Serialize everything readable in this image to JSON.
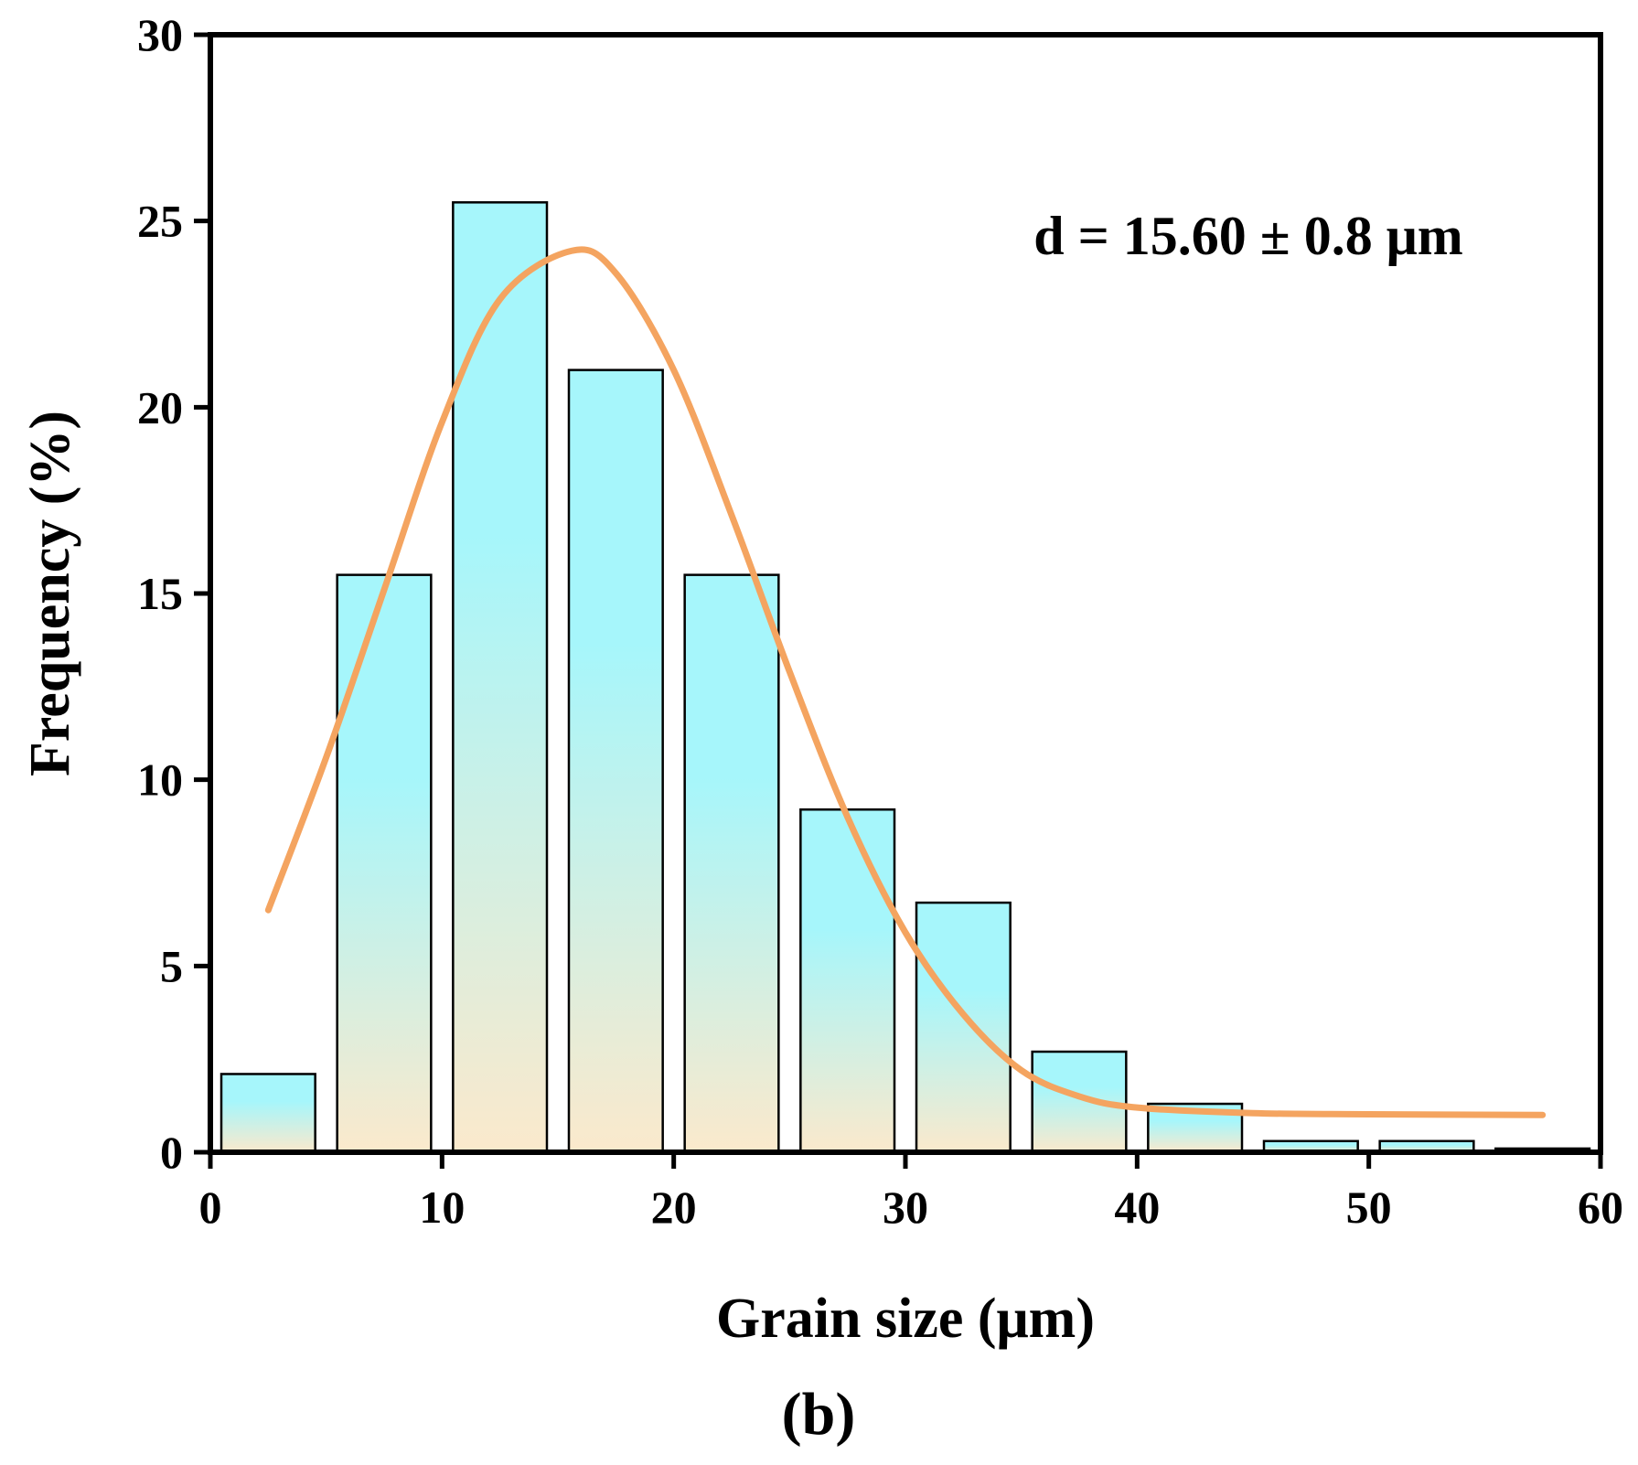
{
  "chart_data": {
    "type": "bar",
    "xlabel": "Grain size (μm)",
    "ylabel": "Frequency (%)",
    "xlim": [
      0,
      60
    ],
    "ylim": [
      0,
      30
    ],
    "xticks": [
      0,
      10,
      20,
      30,
      40,
      50,
      60
    ],
    "yticks": [
      0,
      5,
      10,
      15,
      20,
      25,
      30
    ],
    "bin_width": 5,
    "bins": [
      {
        "x_start": 0,
        "x_end": 5,
        "value": 2.1
      },
      {
        "x_start": 5,
        "x_end": 10,
        "value": 15.5
      },
      {
        "x_start": 10,
        "x_end": 15,
        "value": 25.5
      },
      {
        "x_start": 15,
        "x_end": 20,
        "value": 21.0
      },
      {
        "x_start": 20,
        "x_end": 25,
        "value": 15.5
      },
      {
        "x_start": 25,
        "x_end": 30,
        "value": 9.2
      },
      {
        "x_start": 30,
        "x_end": 35,
        "value": 6.7
      },
      {
        "x_start": 35,
        "x_end": 40,
        "value": 2.7
      },
      {
        "x_start": 40,
        "x_end": 45,
        "value": 1.3
      },
      {
        "x_start": 45,
        "x_end": 50,
        "value": 0.3
      },
      {
        "x_start": 50,
        "x_end": 55,
        "value": 0.3
      },
      {
        "x_start": 55,
        "x_end": 60,
        "value": 0.1
      }
    ],
    "fit_curve": {
      "x": [
        2.5,
        5,
        7.5,
        10,
        12.5,
        15.6,
        17.5,
        20,
        22.5,
        25,
        27.5,
        30,
        32.5,
        35,
        37.5,
        40,
        45,
        50,
        57.5
      ],
      "y": [
        6.5,
        10.6,
        15.1,
        19.6,
        22.9,
        24.2,
        23.6,
        21.0,
        17.1,
        12.9,
        9.0,
        5.9,
        3.7,
        2.2,
        1.5,
        1.2,
        1.05,
        1.02,
        1.0
      ]
    },
    "annotation": "d = 15.60 ± 0.8 μm",
    "panel_label": "(b)",
    "grid": false,
    "colors": {
      "bar_top": "#a6f6fb",
      "bar_bottom": "#fbe9cc",
      "bar_edge": "#000000",
      "curve": "#f4a460"
    }
  }
}
